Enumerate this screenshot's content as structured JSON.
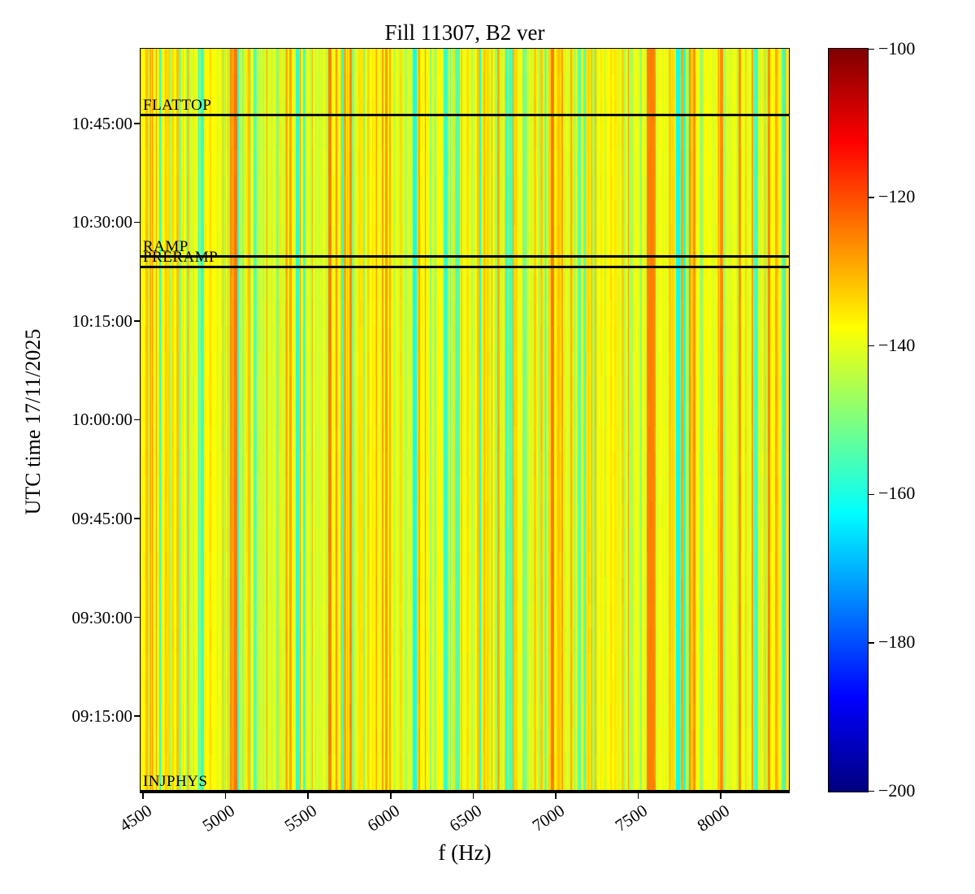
{
  "title": "Fill 11307, B2 ver",
  "axes": {
    "x": {
      "label": "f (Hz)",
      "ticks": [
        "4500",
        "5000",
        "5500",
        "6000",
        "6500",
        "7000",
        "7500",
        "8000"
      ],
      "tick_values_hz": [
        4500,
        5000,
        5500,
        6000,
        6500,
        7000,
        7500,
        8000
      ],
      "range_hz": [
        4485,
        8413
      ]
    },
    "y": {
      "label": "UTC time 17/11/2025",
      "ticks": [
        "10:45:00",
        "10:30:00",
        "10:15:00",
        "10:00:00",
        "09:45:00",
        "09:30:00",
        "09:15:00"
      ],
      "top_time": "10:56:21",
      "bottom_time": "09:03:24"
    }
  },
  "colorbar": {
    "tick_labels": [
      "−100",
      "−120",
      "−140",
      "−160",
      "−180",
      "−200"
    ],
    "tick_values_db": [
      -100,
      -120,
      -140,
      -160,
      -180,
      -200
    ],
    "range_db": [
      -200,
      -100
    ],
    "colormap": "jet"
  },
  "events": [
    {
      "label": "FLATTOP",
      "time": "10:46:14"
    },
    {
      "label": "RAMP",
      "time": "10:24:45"
    },
    {
      "label": "PRERAMP",
      "time": "10:23:09"
    },
    {
      "label": "INJPHYS",
      "time": "09:03:38"
    }
  ],
  "colors": {
    "background": "#ffffff",
    "axis": "#000000",
    "event_line": "#000000",
    "text": "#000000"
  },
  "chart_data": {
    "type": "heatmap",
    "title": "Fill 11307, B2 ver",
    "xlabel": "f (Hz)",
    "ylabel": "UTC time 17/11/2025",
    "x_range_hz": [
      4485,
      8413
    ],
    "x_ticks_hz": [
      4500,
      5000,
      5500,
      6000,
      6500,
      7000,
      7500,
      8000
    ],
    "y_ticks_time": [
      "10:45:00",
      "10:30:00",
      "10:15:00",
      "10:00:00",
      "09:45:00",
      "09:30:00",
      "09:15:00"
    ],
    "y_time_top": "10:56:21",
    "y_time_bottom": "09:03:24",
    "value_range_db": [
      -200,
      -100
    ],
    "colorbar_ticks_db": [
      -100,
      -120,
      -140,
      -160,
      -180,
      -200
    ],
    "colormap": "jet",
    "pattern": "dense vertical spectral lines, constant over time; background level ≈ −143…−135 dB (yellow/yellow-green), frequent amber/orange lines ≈ −132…−124 dB, green dips ≈ −145…−154 dB, sparse teal/cyan dips ≈ −155…−162 dB",
    "background_level_db": -139,
    "notable_lines": [
      {
        "f_hz": 6142,
        "level_db": -161,
        "color": "cyan"
      },
      {
        "f_hz": 6330,
        "level_db": -158,
        "color": "cyan"
      },
      {
        "f_hz": 7740,
        "level_db": -162,
        "color": "cyan"
      },
      {
        "f_hz": 7570,
        "level_db": -125,
        "color": "orange",
        "width_hz": 40
      },
      {
        "f_hz": 8210,
        "level_db": -157,
        "color": "teal"
      }
    ],
    "events": [
      {
        "label": "FLATTOP",
        "time": "10:46:14"
      },
      {
        "label": "RAMP",
        "time": "10:24:45"
      },
      {
        "label": "PRERAMP",
        "time": "10:23:09"
      },
      {
        "label": "INJPHYS",
        "time": "09:03:38"
      }
    ],
    "legend_position": "right-colorbar",
    "grid": false
  }
}
